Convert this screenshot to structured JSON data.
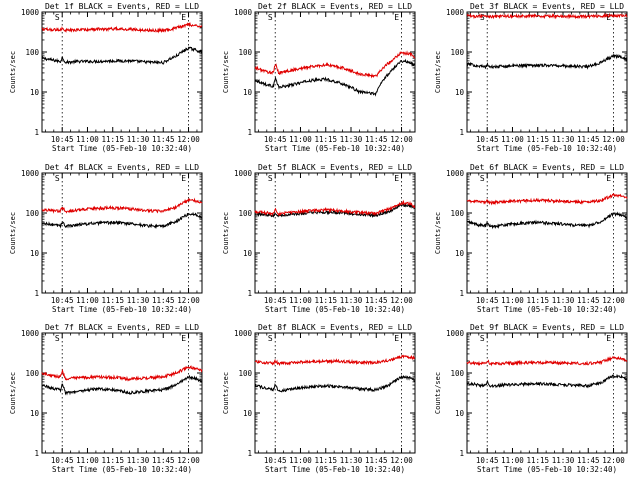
{
  "chart_data": [
    {
      "type": "line",
      "title": "Det 1f BLACK = Events, RED = LLD",
      "xlabel": "Start Time (05-Feb-10 10:32:40)",
      "ylabel": "Counts/sec",
      "yscale": "log",
      "ylim": [
        1,
        1000
      ],
      "xlim": [
        "10:33",
        "12:08"
      ],
      "x_ticks": [
        "10:45",
        "11:00",
        "11:15",
        "11:30",
        "11:45",
        "12:00"
      ],
      "y_ticks": [
        "1",
        "10",
        "100",
        "1000"
      ],
      "markers": {
        "S": "10:45",
        "E": "12:00"
      },
      "grid": false,
      "series": [
        {
          "color": "#000000",
          "x": [
            "10:33",
            "10:40",
            "10:44",
            "10:45",
            "10:47",
            "10:55",
            "11:05",
            "11:15",
            "11:25",
            "11:35",
            "11:45",
            "11:53",
            "12:00",
            "12:05",
            "12:08"
          ],
          "values": [
            70,
            62,
            58,
            72,
            55,
            58,
            58,
            60,
            60,
            56,
            54,
            80,
            125,
            110,
            100
          ]
        },
        {
          "color": "#e00000",
          "x": [
            "10:33",
            "10:40",
            "10:44",
            "10:45",
            "10:47",
            "10:55",
            "11:05",
            "11:15",
            "11:25",
            "11:35",
            "11:45",
            "11:53",
            "12:00",
            "12:05",
            "12:08"
          ],
          "values": [
            370,
            360,
            355,
            400,
            345,
            360,
            370,
            380,
            370,
            350,
            345,
            400,
            480,
            460,
            440
          ]
        }
      ]
    },
    {
      "type": "line",
      "title": "Det 2f BLACK = Events, RED = LLD",
      "xlabel": "Start Time (05-Feb-10 10:32:40)",
      "ylabel": "Counts/sec",
      "yscale": "log",
      "ylim": [
        1,
        1000
      ],
      "xlim": [
        "10:33",
        "12:08"
      ],
      "x_ticks": [
        "10:45",
        "11:00",
        "11:15",
        "11:30",
        "11:45",
        "12:00"
      ],
      "y_ticks": [
        "1",
        "10",
        "100",
        "1000"
      ],
      "markers": {
        "S": "10:45",
        "E": "12:00"
      },
      "grid": false,
      "series": [
        {
          "color": "#000000",
          "x": [
            "10:33",
            "10:40",
            "10:44",
            "10:45",
            "10:47",
            "10:55",
            "11:05",
            "11:15",
            "11:25",
            "11:35",
            "11:45",
            "11:53",
            "12:00",
            "12:05",
            "12:08"
          ],
          "values": [
            20,
            15,
            14,
            22,
            13,
            15,
            19,
            21,
            16,
            10,
            9,
            30,
            60,
            55,
            45
          ]
        },
        {
          "color": "#e00000",
          "x": [
            "10:33",
            "10:40",
            "10:44",
            "10:45",
            "10:47",
            "10:55",
            "11:05",
            "11:15",
            "11:25",
            "11:35",
            "11:45",
            "11:53",
            "12:00",
            "12:05",
            "12:08"
          ],
          "values": [
            40,
            32,
            30,
            50,
            30,
            35,
            42,
            48,
            40,
            28,
            25,
            55,
            95,
            90,
            75
          ]
        }
      ]
    },
    {
      "type": "line",
      "title": "Det 3f BLACK = Events, RED = LLD",
      "xlabel": "Start Time (05-Feb-10 10:32:40)",
      "ylabel": "Counts/sec",
      "yscale": "log",
      "ylim": [
        1,
        1000
      ],
      "xlim": [
        "10:33",
        "12:08"
      ],
      "x_ticks": [
        "10:45",
        "11:00",
        "11:15",
        "11:30",
        "11:45",
        "12:00"
      ],
      "y_ticks": [
        "1",
        "10",
        "100",
        "1000"
      ],
      "markers": {
        "S": "10:45",
        "E": "12:00"
      },
      "grid": false,
      "series": [
        {
          "color": "#000000",
          "x": [
            "10:33",
            "10:40",
            "10:44",
            "10:45",
            "10:47",
            "10:55",
            "11:05",
            "11:15",
            "11:25",
            "11:35",
            "11:45",
            "11:53",
            "12:00",
            "12:05",
            "12:08"
          ],
          "values": [
            50,
            45,
            42,
            48,
            42,
            44,
            46,
            47,
            46,
            44,
            43,
            55,
            80,
            75,
            65
          ]
        },
        {
          "color": "#e00000",
          "x": [
            "10:33",
            "10:40",
            "10:44",
            "10:45",
            "10:47",
            "10:55",
            "11:05",
            "11:15",
            "11:25",
            "11:35",
            "11:45",
            "11:53",
            "12:00",
            "12:05",
            "12:08"
          ],
          "values": [
            800,
            780,
            770,
            790,
            770,
            780,
            790,
            790,
            785,
            775,
            770,
            790,
            820,
            810,
            800
          ]
        }
      ]
    },
    {
      "type": "line",
      "title": "Det 4f BLACK = Events, RED = LLD",
      "xlabel": "Start Time (05-Feb-10 10:32:40)",
      "ylabel": "Counts/sec",
      "yscale": "log",
      "ylim": [
        1,
        1000
      ],
      "xlim": [
        "10:33",
        "12:08"
      ],
      "x_ticks": [
        "10:45",
        "11:00",
        "11:15",
        "11:30",
        "11:45",
        "12:00"
      ],
      "y_ticks": [
        "1",
        "10",
        "100",
        "1000"
      ],
      "markers": {
        "S": "10:45",
        "E": "12:00"
      },
      "grid": false,
      "series": [
        {
          "color": "#000000",
          "x": [
            "10:33",
            "10:40",
            "10:44",
            "10:45",
            "10:47",
            "10:55",
            "11:05",
            "11:15",
            "11:25",
            "11:35",
            "11:45",
            "11:53",
            "12:00",
            "12:05",
            "12:08"
          ],
          "values": [
            55,
            50,
            48,
            60,
            46,
            52,
            55,
            58,
            55,
            48,
            46,
            62,
            95,
            90,
            75
          ]
        },
        {
          "color": "#e00000",
          "x": [
            "10:33",
            "10:40",
            "10:44",
            "10:45",
            "10:47",
            "10:55",
            "11:05",
            "11:15",
            "11:25",
            "11:35",
            "11:45",
            "11:53",
            "12:00",
            "12:05",
            "12:08"
          ],
          "values": [
            120,
            115,
            112,
            140,
            110,
            120,
            130,
            135,
            128,
            115,
            110,
            140,
            210,
            200,
            170
          ]
        }
      ]
    },
    {
      "type": "line",
      "title": "Det 5f BLACK = Events, RED = LLD",
      "xlabel": "Start Time (05-Feb-10 10:32:40)",
      "ylabel": "Counts/sec",
      "yscale": "log",
      "ylim": [
        1,
        1000
      ],
      "xlim": [
        "10:33",
        "12:08"
      ],
      "x_ticks": [
        "10:45",
        "11:00",
        "11:15",
        "11:30",
        "11:45",
        "12:00"
      ],
      "y_ticks": [
        "1",
        "10",
        "100",
        "1000"
      ],
      "markers": {
        "S": "10:45",
        "E": "12:00"
      },
      "grid": false,
      "series": [
        {
          "color": "#000000",
          "x": [
            "10:33",
            "10:40",
            "10:44",
            "10:45",
            "10:47",
            "10:55",
            "11:05",
            "11:15",
            "11:25",
            "11:35",
            "11:45",
            "11:53",
            "12:00",
            "12:05",
            "12:08"
          ],
          "values": [
            95,
            90,
            88,
            100,
            86,
            92,
            100,
            105,
            100,
            92,
            88,
            110,
            160,
            150,
            125
          ]
        },
        {
          "color": "#e00000",
          "x": [
            "10:33",
            "10:40",
            "10:44",
            "10:45",
            "10:47",
            "10:55",
            "11:05",
            "11:15",
            "11:25",
            "11:35",
            "11:45",
            "11:53",
            "12:00",
            "12:05",
            "12:08"
          ],
          "values": [
            110,
            100,
            98,
            125,
            96,
            105,
            115,
            120,
            112,
            102,
            98,
            125,
            180,
            170,
            140
          ]
        }
      ]
    },
    {
      "type": "line",
      "title": "Det 6f BLACK = Events, RED = LLD",
      "xlabel": "Start Time (05-Feb-10 10:32:40)",
      "ylabel": "Counts/sec",
      "yscale": "log",
      "ylim": [
        1,
        1000
      ],
      "xlim": [
        "10:33",
        "12:08"
      ],
      "x_ticks": [
        "10:45",
        "11:00",
        "11:15",
        "11:30",
        "11:45",
        "12:00"
      ],
      "y_ticks": [
        "1",
        "10",
        "100",
        "1000"
      ],
      "markers": {
        "S": "10:45",
        "E": "12:00"
      },
      "grid": false,
      "series": [
        {
          "color": "#000000",
          "x": [
            "10:33",
            "10:40",
            "10:44",
            "10:45",
            "10:47",
            "10:55",
            "11:05",
            "11:15",
            "11:25",
            "11:35",
            "11:45",
            "11:53",
            "12:00",
            "12:05",
            "12:08"
          ],
          "values": [
            60,
            50,
            48,
            55,
            46,
            50,
            55,
            58,
            55,
            50,
            48,
            62,
            95,
            90,
            75
          ]
        },
        {
          "color": "#e00000",
          "x": [
            "10:33",
            "10:40",
            "10:44",
            "10:45",
            "10:47",
            "10:55",
            "11:05",
            "11:15",
            "11:25",
            "11:35",
            "11:45",
            "11:53",
            "12:00",
            "12:05",
            "12:08"
          ],
          "values": [
            200,
            190,
            185,
            200,
            180,
            190,
            200,
            210,
            200,
            190,
            185,
            210,
            280,
            270,
            240
          ]
        }
      ]
    },
    {
      "type": "line",
      "title": "Det 7f BLACK = Events, RED = LLD",
      "xlabel": "Start Time (05-Feb-10 10:32:40)",
      "ylabel": "Counts/sec",
      "yscale": "log",
      "ylim": [
        1,
        1000
      ],
      "xlim": [
        "10:33",
        "12:08"
      ],
      "x_ticks": [
        "10:45",
        "11:00",
        "11:15",
        "11:30",
        "11:45",
        "12:00"
      ],
      "y_ticks": [
        "1",
        "10",
        "100",
        "1000"
      ],
      "markers": {
        "S": "10:45",
        "E": "12:00"
      },
      "grid": false,
      "series": [
        {
          "color": "#000000",
          "x": [
            "10:33",
            "10:40",
            "10:44",
            "10:45",
            "10:47",
            "10:55",
            "11:05",
            "11:15",
            "11:25",
            "11:35",
            "11:45",
            "11:53",
            "12:00",
            "12:05",
            "12:08"
          ],
          "values": [
            50,
            40,
            38,
            55,
            32,
            35,
            40,
            38,
            32,
            35,
            38,
            50,
            80,
            70,
            60
          ]
        },
        {
          "color": "#e00000",
          "x": [
            "10:33",
            "10:40",
            "10:44",
            "10:45",
            "10:47",
            "10:55",
            "11:05",
            "11:15",
            "11:25",
            "11:35",
            "11:45",
            "11:53",
            "12:00",
            "12:05",
            "12:08"
          ],
          "values": [
            100,
            85,
            80,
            110,
            72,
            75,
            80,
            78,
            70,
            75,
            80,
            100,
            140,
            130,
            115
          ]
        }
      ]
    },
    {
      "type": "line",
      "title": "Det 8f BLACK = Events, RED = LLD",
      "xlabel": "Start Time (05-Feb-10 10:32:40)",
      "ylabel": "Counts/sec",
      "yscale": "log",
      "ylim": [
        1,
        1000
      ],
      "xlim": [
        "10:33",
        "12:08"
      ],
      "x_ticks": [
        "10:45",
        "11:00",
        "11:15",
        "11:30",
        "11:45",
        "12:00"
      ],
      "y_ticks": [
        "1",
        "10",
        "100",
        "1000"
      ],
      "markers": {
        "S": "10:45",
        "E": "12:00"
      },
      "grid": false,
      "series": [
        {
          "color": "#000000",
          "x": [
            "10:33",
            "10:40",
            "10:44",
            "10:45",
            "10:47",
            "10:55",
            "11:05",
            "11:15",
            "11:25",
            "11:35",
            "11:45",
            "11:53",
            "12:00",
            "12:05",
            "12:08"
          ],
          "values": [
            50,
            40,
            38,
            50,
            35,
            40,
            45,
            48,
            45,
            40,
            38,
            50,
            80,
            75,
            65
          ]
        },
        {
          "color": "#e00000",
          "x": [
            "10:33",
            "10:40",
            "10:44",
            "10:45",
            "10:47",
            "10:55",
            "11:05",
            "11:15",
            "11:25",
            "11:35",
            "11:45",
            "11:53",
            "12:00",
            "12:05",
            "12:08"
          ],
          "values": [
            190,
            180,
            175,
            200,
            170,
            180,
            190,
            200,
            195,
            185,
            180,
            210,
            260,
            250,
            230
          ]
        }
      ]
    },
    {
      "type": "line",
      "title": "Det 9f BLACK = Events, RED = LLD",
      "xlabel": "Start Time (05-Feb-10 10:32:40)",
      "ylabel": "Counts/sec",
      "yscale": "log",
      "ylim": [
        1,
        1000
      ],
      "xlim": [
        "10:33",
        "12:08"
      ],
      "x_ticks": [
        "10:45",
        "11:00",
        "11:15",
        "11:30",
        "11:45",
        "12:00"
      ],
      "y_ticks": [
        "1",
        "10",
        "100",
        "1000"
      ],
      "markers": {
        "S": "10:45",
        "E": "12:00"
      },
      "grid": false,
      "series": [
        {
          "color": "#000000",
          "x": [
            "10:33",
            "10:40",
            "10:44",
            "10:45",
            "10:47",
            "10:55",
            "11:05",
            "11:15",
            "11:25",
            "11:35",
            "11:45",
            "11:53",
            "12:00",
            "12:05",
            "12:08"
          ],
          "values": [
            55,
            50,
            48,
            62,
            46,
            50,
            52,
            54,
            52,
            50,
            48,
            58,
            85,
            80,
            70
          ]
        },
        {
          "color": "#e00000",
          "x": [
            "10:33",
            "10:40",
            "10:44",
            "10:45",
            "10:47",
            "10:55",
            "11:05",
            "11:15",
            "11:25",
            "11:35",
            "11:45",
            "11:53",
            "12:00",
            "12:05",
            "12:08"
          ],
          "values": [
            180,
            175,
            172,
            200,
            170,
            175,
            180,
            185,
            180,
            175,
            172,
            190,
            240,
            230,
            210
          ]
        }
      ]
    }
  ]
}
